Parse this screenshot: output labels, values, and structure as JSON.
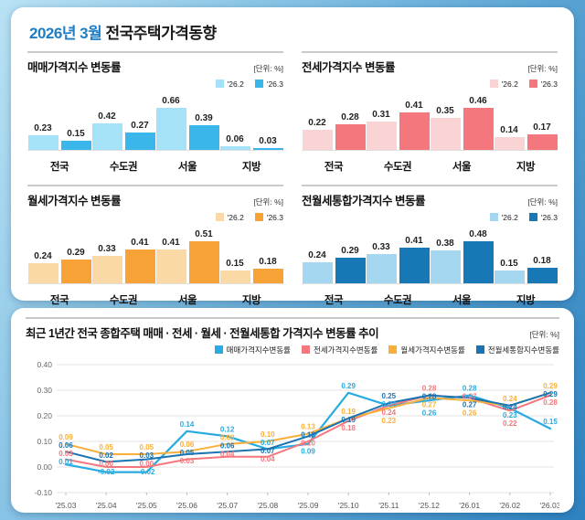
{
  "header": {
    "title_highlight": "2026년 3월",
    "title_rest": "전국주택가격동향"
  },
  "chart_data": [
    {
      "type": "bar",
      "title": "매매가격지수 변동률",
      "unit": "[단위: %]",
      "categories": [
        "전국",
        "수도권",
        "서울",
        "지방"
      ],
      "series": [
        {
          "name": "'26.2",
          "color": "#a5e2f8",
          "values": [
            0.23,
            0.42,
            0.66,
            0.06
          ]
        },
        {
          "name": "'26.3",
          "color": "#3ab6ea",
          "values": [
            0.15,
            0.27,
            0.39,
            0.03
          ]
        }
      ],
      "legend_position": "top-right",
      "grid": false
    },
    {
      "type": "bar",
      "title": "전세가격지수 변동률",
      "unit": "[단위: %]",
      "categories": [
        "전국",
        "수도권",
        "서울",
        "지방"
      ],
      "series": [
        {
          "name": "'26.2",
          "color": "#fad3d5",
          "values": [
            0.22,
            0.31,
            0.35,
            0.14
          ]
        },
        {
          "name": "'26.3",
          "color": "#f4777d",
          "values": [
            0.28,
            0.41,
            0.46,
            0.17
          ]
        }
      ],
      "legend_position": "top-right",
      "grid": false
    },
    {
      "type": "bar",
      "title": "월세가격지수 변동률",
      "unit": "[단위: %]",
      "categories": [
        "전국",
        "수도권",
        "서울",
        "지방"
      ],
      "series": [
        {
          "name": "'26.2",
          "color": "#fbd9a6",
          "values": [
            0.24,
            0.33,
            0.41,
            0.15
          ]
        },
        {
          "name": "'26.3",
          "color": "#f6a237",
          "values": [
            0.29,
            0.41,
            0.51,
            0.18
          ]
        }
      ],
      "legend_position": "top-right",
      "grid": false
    },
    {
      "type": "bar",
      "title": "전월세통합가격지수 변동률",
      "unit": "[단위: %]",
      "categories": [
        "전국",
        "수도권",
        "서울",
        "지방"
      ],
      "series": [
        {
          "name": "'26.2",
          "color": "#a5d8f0",
          "values": [
            0.24,
            0.33,
            0.38,
            0.15
          ]
        },
        {
          "name": "'26.3",
          "color": "#1878b6",
          "values": [
            0.29,
            0.41,
            0.48,
            0.18
          ]
        }
      ],
      "legend_position": "top-right",
      "grid": false
    },
    {
      "type": "line",
      "title": "최근 1년간 전국 종합주택 매매 · 전세 · 월세 · 전월세통합 가격지수 변동률 추이",
      "unit": "[단위: %]",
      "x": [
        "'25.03",
        "'25.04",
        "'25.05",
        "'25.06",
        "'25.07",
        "'25.08",
        "'25.09",
        "'25.10",
        "'25.11",
        "'25.12",
        "'26.01",
        "'26.02",
        "'26.03"
      ],
      "y_ticks": [
        "0.40",
        "0.30",
        "0.20",
        "0.10",
        "0.00",
        "-0.10"
      ],
      "ylim": [
        -0.1,
        0.4
      ],
      "grid": true,
      "legend_position": "top-right",
      "series": [
        {
          "name": "매매가격지수변동률",
          "color": "#29abe2",
          "values": [
            0.01,
            -0.02,
            -0.02,
            0.14,
            0.12,
            0.07,
            0.09,
            0.29,
            0.24,
            0.26,
            0.28,
            0.23,
            0.15
          ]
        },
        {
          "name": "전세가격지수변동률",
          "color": "#f4777d",
          "values": [
            0.03,
            0.0,
            0.0,
            0.03,
            0.04,
            0.04,
            0.1,
            0.18,
            0.24,
            0.28,
            0.27,
            0.22,
            0.28
          ]
        },
        {
          "name": "월세가격지수변동률",
          "color": "#f9b03a",
          "values": [
            0.09,
            0.05,
            0.05,
            0.06,
            0.09,
            0.1,
            0.13,
            0.19,
            0.23,
            0.27,
            0.26,
            0.24,
            0.29
          ]
        },
        {
          "name": "전월세통합지수변동률",
          "color": "#1b74b2",
          "values": [
            0.06,
            0.02,
            0.03,
            0.05,
            0.06,
            0.07,
            0.12,
            0.19,
            0.25,
            0.28,
            0.27,
            0.24,
            0.29
          ]
        }
      ]
    }
  ]
}
